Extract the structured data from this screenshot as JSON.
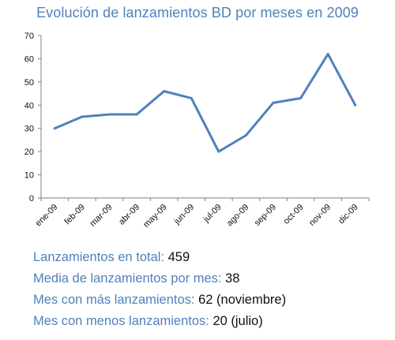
{
  "chart_data": {
    "type": "line",
    "title": "Evolución de lanzamientos BD por meses en 2009",
    "categories": [
      "ene-09",
      "feb-09",
      "mar-09",
      "abr-09",
      "may-09",
      "jun-09",
      "jul-09",
      "ago-09",
      "sep-09",
      "oct-09",
      "nov-09",
      "dic-09"
    ],
    "series": [
      {
        "values": [
          30,
          35,
          36,
          36,
          46,
          43,
          20,
          27,
          41,
          43,
          62,
          40
        ]
      }
    ],
    "ylim": [
      0,
      70
    ],
    "yticks": [
      0,
      10,
      20,
      30,
      40,
      50,
      60,
      70
    ],
    "grid": false,
    "legend": "none",
    "line_color": "#4F81BD",
    "axis_color": "#7F7F7F"
  },
  "stats": [
    {
      "label": "Lanzamientos en total:",
      "value": "459"
    },
    {
      "label": "Media de lanzamientos por mes:",
      "value": "38"
    },
    {
      "label": "Mes con más lanzamientos:",
      "value": "62 (noviembre)"
    },
    {
      "label": "Mes con menos lanzamientos:",
      "value": "20 (julio)"
    }
  ],
  "colors": {
    "accent": "#4F81BD",
    "text": "#111111"
  }
}
